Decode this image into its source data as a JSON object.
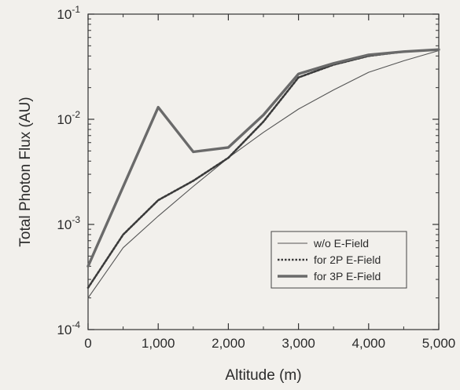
{
  "chart_data": {
    "type": "line",
    "title": "",
    "xlabel": "Altitude (m)",
    "ylabel": "Total Photon Flux (AU)",
    "xlim": [
      0,
      5000
    ],
    "ylim": [
      0.0001,
      0.1
    ],
    "yscale": "log",
    "xticks": [
      0,
      1000,
      2000,
      3000,
      4000,
      5000
    ],
    "xtick_labels": [
      "0",
      "1,000",
      "2,000",
      "3,000",
      "4,000",
      "5,000"
    ],
    "yticks": [
      0.0001,
      0.001,
      0.01,
      0.1
    ],
    "ytick_labels": [
      {
        "base": "10",
        "exp": "-4"
      },
      {
        "base": "10",
        "exp": "-3"
      },
      {
        "base": "10",
        "exp": "-2"
      },
      {
        "base": "10",
        "exp": "-1"
      }
    ],
    "grid": false,
    "legend_position": "bottom-right",
    "series": [
      {
        "name": "w/o E-Field",
        "style": "thin-solid",
        "color": "#555555",
        "x": [
          0,
          500,
          1000,
          1500,
          2000,
          2500,
          3000,
          3500,
          4000,
          4500,
          5000
        ],
        "y": [
          0.0002,
          0.0006,
          0.0012,
          0.0023,
          0.0043,
          0.0075,
          0.0125,
          0.019,
          0.028,
          0.036,
          0.045
        ]
      },
      {
        "name": "for 2P E-Field",
        "style": "dotted",
        "color": "#3a3a3a",
        "x": [
          0,
          500,
          1000,
          1500,
          2000,
          2500,
          3000,
          3500,
          4000,
          4500,
          5000
        ],
        "y": [
          0.00025,
          0.0008,
          0.0017,
          0.0026,
          0.0043,
          0.0095,
          0.025,
          0.033,
          0.04,
          0.044,
          0.046
        ]
      },
      {
        "name": "for 3P E-Field",
        "style": "thick-solid",
        "color": "#6a6a6a",
        "x": [
          0,
          1000,
          1500,
          2000,
          2500,
          3000,
          3500,
          4000,
          4500,
          5000
        ],
        "y": [
          0.0004,
          0.013,
          0.0049,
          0.0054,
          0.011,
          0.027,
          0.034,
          0.041,
          0.044,
          0.046
        ]
      }
    ]
  }
}
